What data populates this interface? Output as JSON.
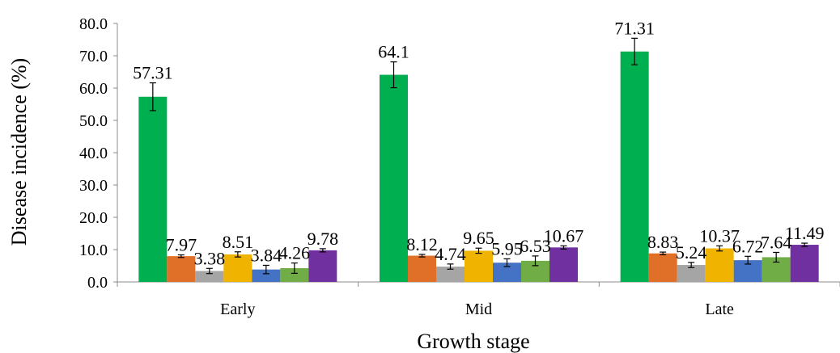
{
  "chart_data": {
    "type": "bar",
    "title": "",
    "xlabel": "Growth stage",
    "ylabel": "Disease incidence (%)",
    "ylim": [
      0,
      80
    ],
    "yticks": [
      "0.0",
      "10.0",
      "20.0",
      "30.0",
      "40.0",
      "50.0",
      "60.0",
      "70.0",
      "80.0"
    ],
    "categories": [
      "Early",
      "Mid",
      "Late"
    ],
    "grid": false,
    "series": [
      {
        "color": "#00b050",
        "values": [
          57.31,
          64.1,
          71.31
        ],
        "labels": [
          "57.31",
          "64.1",
          "71.31"
        ],
        "errors": [
          4.3,
          4.0,
          4.1
        ]
      },
      {
        "color": "#e07028",
        "values": [
          7.97,
          8.12,
          8.83
        ],
        "labels": [
          "7.97",
          "8.12",
          "8.83"
        ],
        "errors": [
          0.4,
          0.4,
          0.4
        ]
      },
      {
        "color": "#a5a5a5",
        "values": [
          3.38,
          4.74,
          5.24
        ],
        "labels": [
          "3.38",
          "4.74",
          "5.24"
        ],
        "errors": [
          0.8,
          0.8,
          0.8
        ]
      },
      {
        "color": "#f0b400",
        "values": [
          8.51,
          9.65,
          10.37
        ],
        "labels": [
          "8.51",
          "9.65",
          "10.37"
        ],
        "errors": [
          0.8,
          0.8,
          0.8
        ]
      },
      {
        "color": "#4472c4",
        "values": [
          3.84,
          5.95,
          6.72
        ],
        "labels": [
          "3.84",
          "5.95",
          "6.72"
        ],
        "errors": [
          1.3,
          1.2,
          1.2
        ]
      },
      {
        "color": "#70ad47",
        "values": [
          4.26,
          6.53,
          7.64
        ],
        "labels": [
          "4.26",
          "6.53",
          "7.64"
        ],
        "errors": [
          1.6,
          1.5,
          1.5
        ]
      },
      {
        "color": "#7030a0",
        "values": [
          9.78,
          10.67,
          11.49
        ],
        "labels": [
          "9.78",
          "10.67",
          "11.49"
        ],
        "errors": [
          0.5,
          0.5,
          0.5
        ]
      }
    ]
  }
}
